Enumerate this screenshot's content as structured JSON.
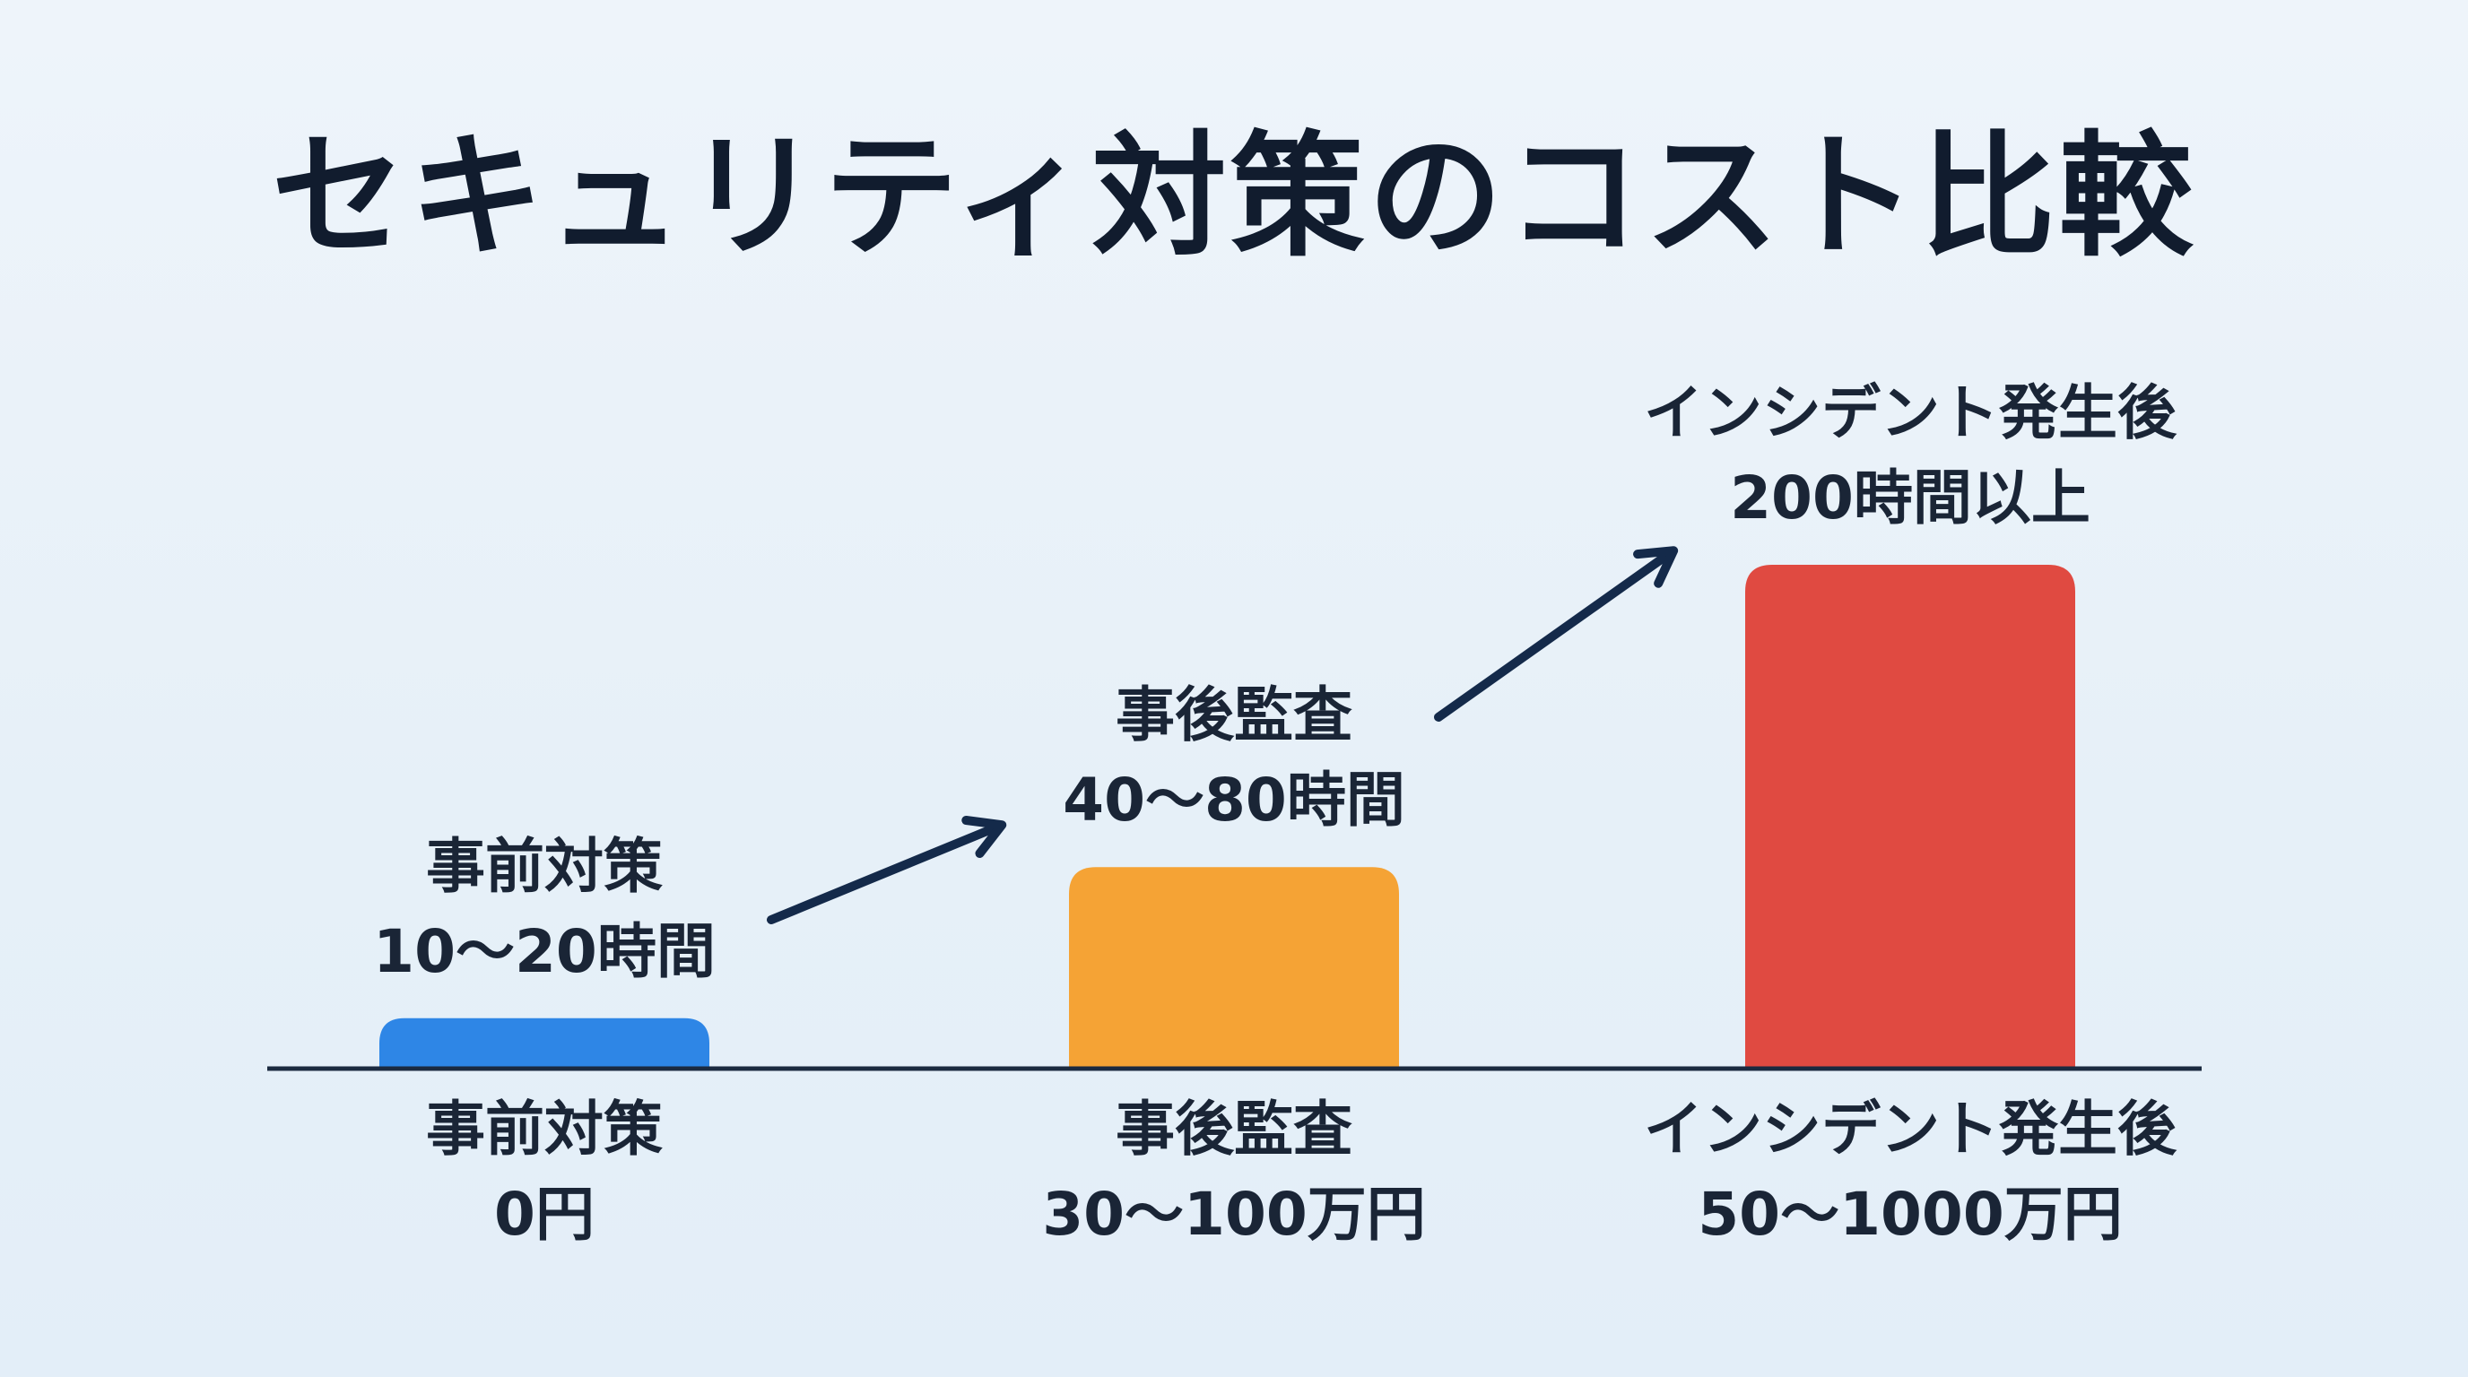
{
  "title": "セキュリティ対策のコスト比較",
  "colors": {
    "background": "#e8f1f9",
    "baseline": "#1b2a40",
    "arrow": "#142a4a",
    "text": "#1a2536"
  },
  "chart_data": {
    "type": "bar",
    "title": "セキュリティ対策のコスト比較",
    "xlabel": "",
    "ylabel": "",
    "grid": false,
    "legend": "none",
    "ylim": [
      0,
      200
    ],
    "unit": "時間",
    "categories": [
      "事前対策",
      "事後監査",
      "インシデント発生後"
    ],
    "values": [
      20,
      80,
      200
    ],
    "bar_colors": [
      "#2e86e6",
      "#f5a335",
      "#e04a41"
    ],
    "top_labels": [
      [
        "事前対策",
        "10〜20時間"
      ],
      [
        "事後監査",
        "40〜80時間"
      ],
      [
        "インシデント発生後",
        "200時間以上"
      ]
    ],
    "bottom_labels": [
      [
        "事前対策",
        "0円"
      ],
      [
        "事後監査",
        "30〜100万円"
      ],
      [
        "インシデント発生後",
        "50〜1000万円"
      ]
    ],
    "annotations": [
      {
        "type": "arrow",
        "from": "事前対策",
        "to": "事後監査"
      },
      {
        "type": "arrow",
        "from": "事後監査",
        "to": "インシデント発生後"
      }
    ]
  }
}
